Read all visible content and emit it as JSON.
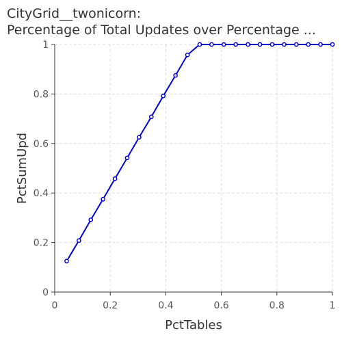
{
  "chart_data": {
    "type": "line",
    "title_line1": "CityGrid__twonicorn:",
    "title_line2": "Percentage of Total Updates over Percentage ...",
    "xlabel": "PctTables",
    "ylabel": "PctSumUpd",
    "xlim": [
      0,
      1
    ],
    "ylim": [
      0,
      1
    ],
    "xticks": [
      "0",
      "0.2",
      "0.4",
      "0.6",
      "0.8",
      "1"
    ],
    "yticks": [
      "0",
      "0.2",
      "0.4",
      "0.6",
      "0.8",
      "1"
    ],
    "grid": true,
    "series": [
      {
        "color": "#0000cc",
        "x": [
          0.043,
          0.087,
          0.13,
          0.174,
          0.217,
          0.261,
          0.304,
          0.348,
          0.391,
          0.435,
          0.478,
          0.522,
          0.565,
          0.609,
          0.652,
          0.696,
          0.739,
          0.783,
          0.826,
          0.87,
          0.913,
          0.957,
          1.0
        ],
        "y": [
          0.125,
          0.208,
          0.292,
          0.375,
          0.458,
          0.542,
          0.625,
          0.708,
          0.792,
          0.875,
          0.958,
          1.0,
          1.0,
          1.0,
          1.0,
          1.0,
          1.0,
          1.0,
          1.0,
          1.0,
          1.0,
          1.0,
          1.0
        ]
      }
    ]
  }
}
